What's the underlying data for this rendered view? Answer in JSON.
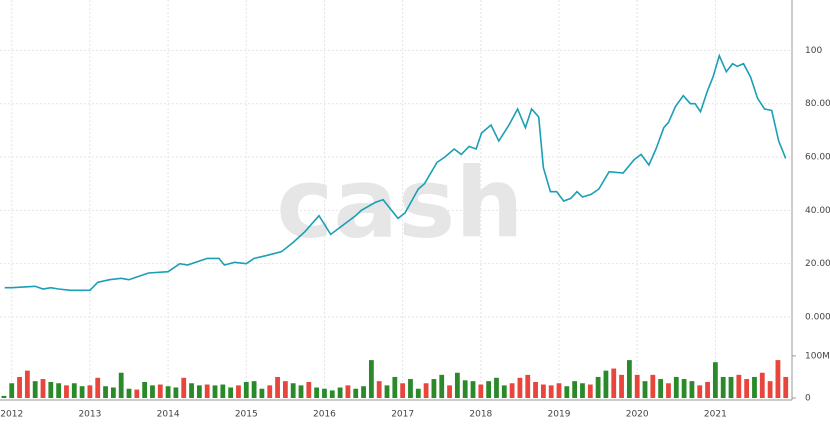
{
  "chart_data": {
    "type": "line",
    "watermark": "cash",
    "color": "#1a9fb5",
    "x": [
      2011.91,
      2012.0,
      2012.3,
      2012.4,
      2012.5,
      2012.6,
      2012.75,
      2013.0,
      2013.1,
      2013.25,
      2013.4,
      2013.5,
      2013.6,
      2013.75,
      2014.0,
      2014.15,
      2014.25,
      2014.4,
      2014.5,
      2014.65,
      2014.72,
      2014.85,
      2015.0,
      2015.1,
      2015.25,
      2015.45,
      2015.6,
      2015.75,
      2015.93,
      2016.08,
      2016.4,
      2016.47,
      2016.65,
      2016.75,
      2016.94,
      2017.03,
      2017.2,
      2017.28,
      2017.44,
      2017.54,
      2017.66,
      2017.75,
      2017.85,
      2017.94,
      2018.01,
      2018.13,
      2018.23,
      2018.36,
      2018.47,
      2018.57,
      2018.65,
      2018.74,
      2018.8,
      2018.89,
      2018.97,
      2019.06,
      2019.15,
      2019.23,
      2019.3,
      2019.41,
      2019.51,
      2019.64,
      2019.82,
      2019.96,
      2020.05,
      2020.15,
      2020.24,
      2020.34,
      2020.4,
      2020.49,
      2020.59,
      2020.68,
      2020.74,
      2020.81,
      2020.9,
      2020.97,
      2021.05,
      2021.14,
      2021.22,
      2021.28,
      2021.36,
      2021.45,
      2021.54,
      2021.63,
      2021.72,
      2021.81,
      2021.9
    ],
    "values": [
      11,
      11,
      11.5,
      10.5,
      11,
      10.5,
      10,
      10,
      13,
      14,
      14.5,
      14,
      15,
      16.5,
      17,
      20,
      19.5,
      21,
      22,
      22,
      19.5,
      20.5,
      20,
      22,
      23,
      24.5,
      28,
      32,
      38,
      31,
      38,
      40,
      43,
      44,
      37,
      39,
      48,
      50,
      58,
      60,
      63,
      61,
      64,
      63,
      69,
      72,
      66,
      72,
      78,
      71,
      78,
      75,
      56,
      47,
      47,
      43.5,
      44.5,
      47,
      45,
      46,
      48,
      54.5,
      54,
      59,
      61,
      57,
      63,
      71,
      73,
      79,
      83,
      80,
      80,
      77,
      85,
      90,
      98,
      92,
      95,
      94,
      95,
      90,
      82,
      78,
      77.5,
      66,
      59.5
    ],
    "xlim": [
      2011.85,
      2021.98
    ],
    "xticks": [
      2012,
      2013,
      2014,
      2015,
      2016,
      2017,
      2018,
      2019,
      2020,
      2021
    ],
    "ylim": [
      -10.5,
      118.9
    ],
    "yticks": [
      {
        "value": 0,
        "label": "0.0000"
      },
      {
        "value": 20,
        "label": "20.00"
      },
      {
        "value": 40,
        "label": "40.00"
      },
      {
        "value": 60,
        "label": "60.00"
      },
      {
        "value": 80,
        "label": "80.00"
      },
      100
    ],
    "grid": true,
    "volume": {
      "ylim": [
        0,
        114
      ],
      "yticks": [
        0,
        {
          "value": 100,
          "label": "100M"
        }
      ],
      "values": [
        5,
        35,
        50,
        65,
        40,
        45,
        38,
        35,
        30,
        35,
        28,
        30,
        48,
        28,
        25,
        60,
        22,
        20,
        38,
        30,
        32,
        28,
        25,
        48,
        35,
        30,
        32,
        30,
        32,
        25,
        30,
        38,
        40,
        22,
        30,
        50,
        40,
        35,
        30,
        38,
        25,
        22,
        18,
        25,
        30,
        22,
        28,
        90,
        40,
        30,
        50,
        35,
        45,
        22,
        35,
        45,
        55,
        30,
        60,
        42,
        40,
        32,
        40,
        48,
        30,
        35,
        48,
        55,
        38,
        32,
        30,
        35,
        28,
        40,
        35,
        32,
        50,
        65,
        70,
        55,
        90,
        55,
        40,
        55,
        45,
        35,
        50,
        45,
        40,
        30,
        38,
        85,
        50,
        50,
        55,
        45,
        50,
        60,
        40,
        90,
        50
      ],
      "x0": 2011.9,
      "step": 0.1,
      "colors": [
        "#2a8a2a",
        "#2a8a2a",
        "#e8453c",
        "#e8453c",
        "#2a8a2a",
        "#e8453c",
        "#2a8a2a",
        "#2a8a2a",
        "#e8453c",
        "#2a8a2a",
        "#2a8a2a",
        "#e8453c",
        "#e8453c",
        "#2a8a2a",
        "#2a8a2a",
        "#2a8a2a",
        "#2a8a2a",
        "#e8453c",
        "#2a8a2a",
        "#2a8a2a",
        "#e8453c",
        "#2a8a2a",
        "#2a8a2a",
        "#e8453c",
        "#2a8a2a",
        "#2a8a2a",
        "#e8453c",
        "#2a8a2a",
        "#2a8a2a",
        "#2a8a2a",
        "#e8453c",
        "#2a8a2a",
        "#2a8a2a",
        "#2a8a2a",
        "#e8453c",
        "#e8453c",
        "#e8453c",
        "#2a8a2a",
        "#2a8a2a",
        "#e8453c",
        "#2a8a2a",
        "#2a8a2a",
        "#2a8a2a",
        "#2a8a2a",
        "#e8453c",
        "#2a8a2a",
        "#2a8a2a",
        "#2a8a2a",
        "#e8453c",
        "#2a8a2a",
        "#2a8a2a",
        "#e8453c",
        "#2a8a2a",
        "#2a8a2a",
        "#e8453c",
        "#2a8a2a",
        "#2a8a2a",
        "#e8453c",
        "#2a8a2a",
        "#2a8a2a",
        "#2a8a2a",
        "#e8453c",
        "#2a8a2a",
        "#2a8a2a",
        "#2a8a2a",
        "#e8453c",
        "#e8453c",
        "#e8453c",
        "#e8453c",
        "#e8453c",
        "#e8453c",
        "#e8453c",
        "#2a8a2a",
        "#2a8a2a",
        "#2a8a2a",
        "#e8453c",
        "#2a8a2a",
        "#2a8a2a",
        "#e8453c",
        "#e8453c",
        "#2a8a2a",
        "#e8453c",
        "#2a8a2a",
        "#e8453c",
        "#2a8a2a",
        "#e8453c",
        "#2a8a2a",
        "#2a8a2a",
        "#2a8a2a",
        "#e8453c",
        "#e8453c",
        "#2a8a2a",
        "#2a8a2a",
        "#2a8a2a",
        "#e8453c",
        "#e8453c",
        "#2a8a2a",
        "#e8453c",
        "#e8453c",
        "#e8453c",
        "#e8453c"
      ]
    }
  }
}
